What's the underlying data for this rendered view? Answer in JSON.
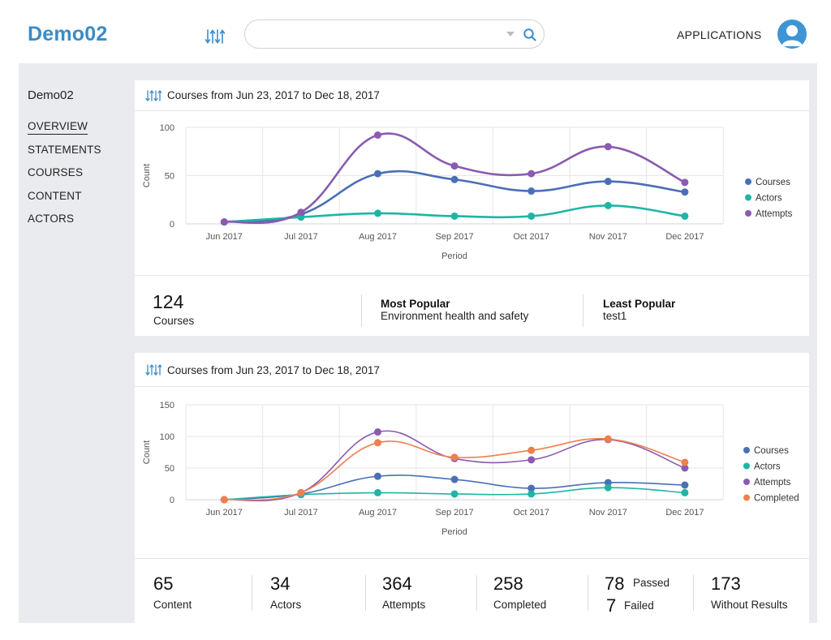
{
  "header": {
    "brand": "Demo02",
    "search": {
      "value": "",
      "placeholder": ""
    },
    "applications_label": "APPLICATIONS",
    "icons": {
      "sort": "sort-arrows-icon",
      "search": "search-icon",
      "caret": "caret-down-icon",
      "avatar": "user-avatar-icon"
    }
  },
  "sidebar": {
    "title": "Demo02",
    "items": [
      {
        "label": "OVERVIEW",
        "active": true
      },
      {
        "label": "STATEMENTS",
        "active": false
      },
      {
        "label": "COURSES",
        "active": false
      },
      {
        "label": "CONTENT",
        "active": false
      },
      {
        "label": "ACTORS",
        "active": false
      }
    ]
  },
  "colors": {
    "accent": "#3a8cc8",
    "courses": "#4a6fb5",
    "actors": "#1fb5a4",
    "attempts": "#8a5bb0",
    "completed": "#f07f4e"
  },
  "card1": {
    "title": "Courses from Jun 23, 2017 to Dec 18, 2017",
    "stats": {
      "courses_value": "124",
      "courses_label": "Courses",
      "most_popular_label": "Most Popular",
      "most_popular_value": "Environment health and safety",
      "least_popular_label": "Least Popular",
      "least_popular_value": "test1"
    }
  },
  "card2": {
    "title": "Courses from Jun 23, 2017 to Dec 18, 2017",
    "stats": [
      {
        "value": "65",
        "label": "Content"
      },
      {
        "value": "34",
        "label": "Actors"
      },
      {
        "value": "364",
        "label": "Attempts"
      },
      {
        "value": "258",
        "label": "Completed"
      },
      {
        "value": "173",
        "label": "Without Results"
      }
    ],
    "passed_value": "78",
    "passed_label": "Passed",
    "failed_value": "7",
    "failed_label": "Failed"
  },
  "chart_data": [
    {
      "type": "line",
      "categories": [
        "Jun 2017",
        "Jul 2017",
        "Aug 2017",
        "Sep 2017",
        "Oct 2017",
        "Nov 2017",
        "Dec 2017"
      ],
      "xlabel": "Period",
      "ylabel": "Count",
      "yticks": [
        0,
        50,
        100
      ],
      "ylim": [
        0,
        100
      ],
      "grid": true,
      "legend": "right",
      "series": [
        {
          "name": "Courses",
          "color": "#4a6fb5",
          "values": [
            2,
            10,
            52,
            46,
            34,
            44,
            33
          ]
        },
        {
          "name": "Actors",
          "color": "#1fb5a4",
          "values": [
            2,
            7,
            11,
            8,
            8,
            19,
            8
          ]
        },
        {
          "name": "Attempts",
          "color": "#8a5bb0",
          "values": [
            2,
            12,
            92,
            60,
            52,
            80,
            43
          ]
        }
      ]
    },
    {
      "type": "line",
      "categories": [
        "Jun 2017",
        "Jul 2017",
        "Aug 2017",
        "Sep 2017",
        "Oct 2017",
        "Nov 2017",
        "Dec 2017"
      ],
      "xlabel": "Period",
      "ylabel": "Count",
      "yticks": [
        0,
        50,
        100,
        150
      ],
      "ylim": [
        0,
        150
      ],
      "grid": true,
      "legend": "right",
      "series": [
        {
          "name": "Courses",
          "color": "#4a6fb5",
          "values": [
            0,
            9,
            37,
            32,
            18,
            27,
            23
          ]
        },
        {
          "name": "Actors",
          "color": "#1fb5a4",
          "values": [
            0,
            8,
            11,
            9,
            9,
            19,
            11
          ]
        },
        {
          "name": "Attempts",
          "color": "#8a5bb0",
          "values": [
            0,
            11,
            107,
            65,
            63,
            95,
            50
          ]
        },
        {
          "name": "Completed",
          "color": "#f07f4e",
          "values": [
            0,
            11,
            90,
            67,
            78,
            96,
            59
          ]
        }
      ]
    }
  ]
}
